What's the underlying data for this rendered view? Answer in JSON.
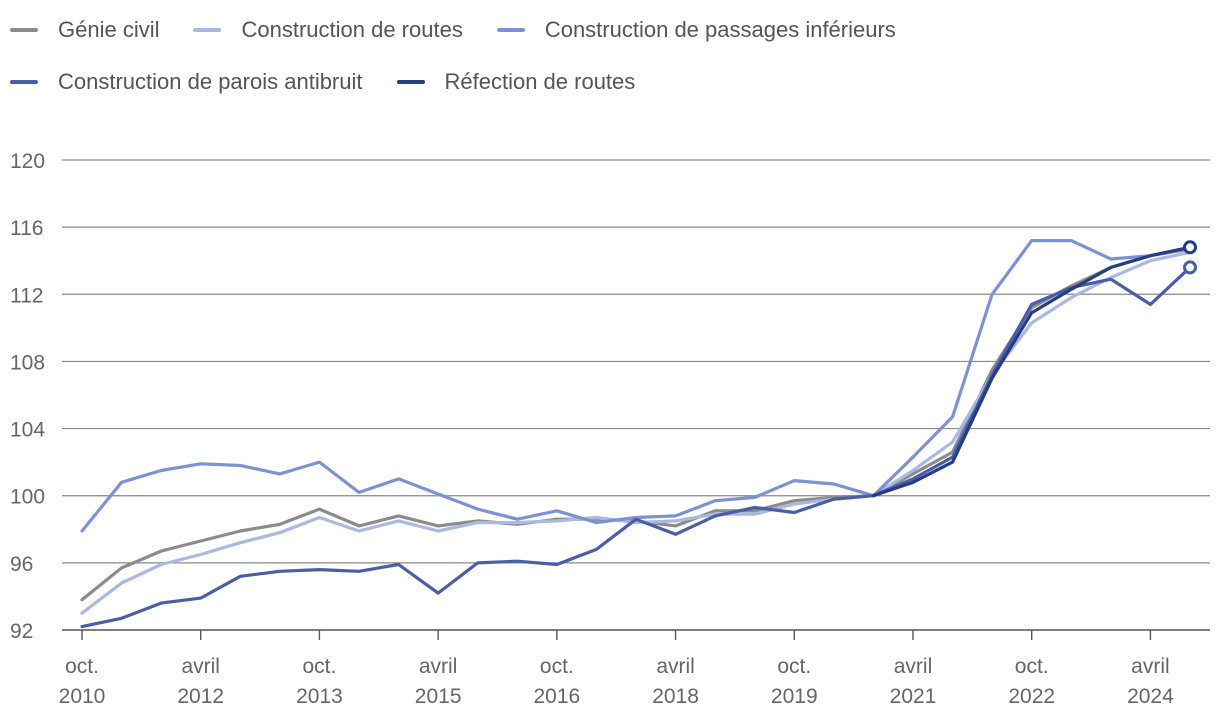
{
  "chart_data": {
    "type": "line",
    "title": "",
    "xlabel": "",
    "ylabel": "",
    "ylim": [
      92,
      120
    ],
    "yticks": [
      92,
      96,
      100,
      104,
      108,
      112,
      116,
      120
    ],
    "grid": "horizontal",
    "legend_position": "top-left",
    "x": [
      "2010-10",
      "2011-04",
      "2011-10",
      "2012-04",
      "2012-10",
      "2013-04",
      "2013-10",
      "2014-04",
      "2014-10",
      "2015-04",
      "2015-10",
      "2016-04",
      "2016-10",
      "2017-04",
      "2017-10",
      "2018-04",
      "2018-10",
      "2019-04",
      "2019-10",
      "2020-04",
      "2020-10",
      "2021-04",
      "2021-10",
      "2022-04",
      "2022-10",
      "2023-04",
      "2023-10",
      "2024-04",
      "2024-10"
    ],
    "x_ticks": [
      {
        "x": "2010-10",
        "line1": "oct.",
        "line2": "2010"
      },
      {
        "x": "2012-04",
        "line1": "avril",
        "line2": "2012"
      },
      {
        "x": "2013-10",
        "line1": "oct.",
        "line2": "2013"
      },
      {
        "x": "2015-04",
        "line1": "avril",
        "line2": "2015"
      },
      {
        "x": "2016-10",
        "line1": "oct.",
        "line2": "2016"
      },
      {
        "x": "2018-04",
        "line1": "avril",
        "line2": "2018"
      },
      {
        "x": "2019-10",
        "line1": "oct.",
        "line2": "2019"
      },
      {
        "x": "2021-04",
        "line1": "avril",
        "line2": "2021"
      },
      {
        "x": "2022-10",
        "line1": "oct.",
        "line2": "2022"
      },
      {
        "x": "2024-04",
        "line1": "avril",
        "line2": "2024"
      }
    ],
    "series": [
      {
        "name": "Génie civil",
        "color": "#8c8c8c",
        "end_marker": false,
        "values": [
          93.8,
          95.7,
          96.7,
          97.3,
          97.9,
          98.3,
          99.2,
          98.2,
          98.8,
          98.2,
          98.5,
          98.3,
          98.6,
          98.6,
          98.5,
          98.2,
          99.1,
          99.1,
          99.7,
          99.9,
          100.0,
          101.3,
          102.6,
          107.5,
          111.2,
          112.5,
          113.6,
          114.3,
          114.7
        ]
      },
      {
        "name": "Construction de routes",
        "color": "#a9b9e4",
        "end_marker": false,
        "values": [
          93.0,
          94.8,
          95.9,
          96.5,
          97.2,
          97.8,
          98.7,
          97.9,
          98.5,
          97.9,
          98.4,
          98.4,
          98.5,
          98.7,
          98.4,
          98.5,
          98.9,
          98.9,
          99.5,
          99.8,
          100.0,
          101.5,
          103.2,
          107.2,
          110.3,
          111.8,
          113.0,
          114.0,
          114.5
        ]
      },
      {
        "name": "Construction de passages inférieurs",
        "color": "#7b93d4",
        "end_marker": false,
        "values": [
          97.9,
          100.8,
          101.5,
          101.9,
          101.8,
          101.3,
          102.0,
          100.2,
          101.0,
          100.1,
          99.2,
          98.6,
          99.1,
          98.4,
          98.7,
          98.8,
          99.7,
          99.9,
          100.9,
          100.7,
          100.0,
          102.3,
          104.7,
          112.0,
          115.2,
          115.2,
          114.1,
          114.3,
          114.8
        ]
      },
      {
        "name": "Construction de parois antibruit",
        "color": "#4a5ea8",
        "end_marker": true,
        "values": [
          92.2,
          92.7,
          93.6,
          93.9,
          95.2,
          95.5,
          95.6,
          95.5,
          95.9,
          94.2,
          96.0,
          96.1,
          95.9,
          96.8,
          98.6,
          97.7,
          98.8,
          99.3,
          99.0,
          99.8,
          100.0,
          101.0,
          102.3,
          107.2,
          111.4,
          112.4,
          112.9,
          111.4,
          113.6
        ]
      },
      {
        "name": "Réfection de routes",
        "color": "#263c84",
        "end_marker": true,
        "values": [
          null,
          null,
          null,
          null,
          null,
          null,
          null,
          null,
          null,
          null,
          null,
          null,
          null,
          null,
          null,
          null,
          null,
          null,
          null,
          null,
          100.0,
          100.8,
          102.0,
          107.0,
          110.9,
          112.3,
          113.6,
          114.3,
          114.8
        ]
      }
    ]
  }
}
